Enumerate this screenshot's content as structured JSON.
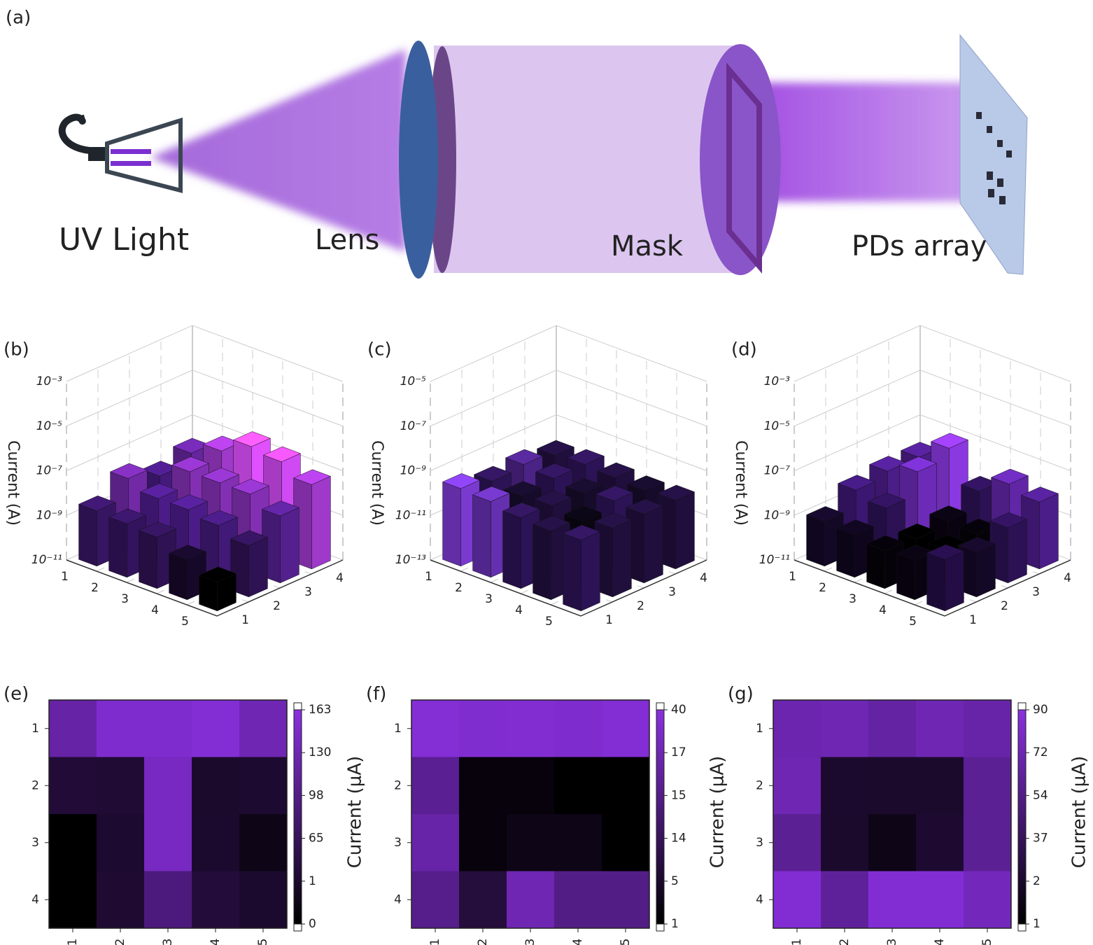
{
  "panel_a": {
    "label": "(a)",
    "components": [
      "UV Light",
      "Lens",
      "Mask",
      "PDs array"
    ]
  },
  "chart_data": [
    {
      "type": "bar3d",
      "label": "(b)",
      "zlabel": "Current (A)",
      "log_scale": true,
      "x_categories": [
        "1",
        "2",
        "3",
        "4",
        "5"
      ],
      "y_categories": [
        "1",
        "2",
        "3",
        "4"
      ],
      "values": [
        [
          3e-09,
          2e-08,
          6e-09,
          1.5e-08
        ],
        [
          2.5e-09,
          8e-09,
          3e-08,
          6e-08
        ],
        [
          2e-09,
          8e-09,
          3e-08,
          3e-07
        ],
        [
          6e-10,
          5e-09,
          3e-08,
          2e-07
        ],
        [
          2e-10,
          2e-09,
          1e-08,
          6e-08
        ]
      ],
      "zlim": [
        1e-11,
        0.001
      ],
      "zticks": [
        {
          "value": 1e-11,
          "label": "10⁻¹¹"
        },
        {
          "value": 1e-09,
          "label": "10⁻⁹"
        },
        {
          "value": 1e-07,
          "label": "10⁻⁷"
        },
        {
          "value": 1e-05,
          "label": "10⁻⁵"
        },
        {
          "value": 0.001,
          "label": "10⁻³"
        }
      ],
      "colors": [
        "#000000",
        "#4a1c86",
        "#e050ff"
      ]
    },
    {
      "type": "bar3d",
      "label": "(c)",
      "zlabel": "Current (A)",
      "log_scale": true,
      "x_categories": [
        "1",
        "2",
        "3",
        "4",
        "5"
      ],
      "y_categories": [
        "1",
        "2",
        "3",
        "4"
      ],
      "values": [
        [
          3e-10,
          1.5e-10,
          2e-10,
          1.2e-10
        ],
        [
          2.5e-10,
          1e-10,
          1.5e-10,
          1.5e-10
        ],
        [
          1.5e-10,
          1.2e-10,
          1e-10,
          1.2e-10
        ],
        [
          1.2e-10,
          8e-11,
          1.5e-10,
          1e-10
        ],
        [
          1.5e-10,
          1.2e-10,
          1.2e-10,
          1.2e-10
        ]
      ],
      "zlim": [
        1e-13,
        1e-05
      ],
      "zticks": [
        {
          "value": 1e-13,
          "label": "10⁻¹³"
        },
        {
          "value": 1e-11,
          "label": "10⁻¹¹"
        },
        {
          "value": 1e-09,
          "label": "10⁻⁹"
        },
        {
          "value": 1e-07,
          "label": "10⁻⁷"
        },
        {
          "value": 1e-05,
          "label": "10⁻⁵"
        }
      ],
      "colors": [
        "#0a0612",
        "#2e1458",
        "#7a3ad0"
      ]
    },
    {
      "type": "bar3d",
      "label": "(d)",
      "zlabel": "Current (A)",
      "log_scale": true,
      "x_categories": [
        "1",
        "2",
        "3",
        "4",
        "5"
      ],
      "y_categories": [
        "1",
        "2",
        "3",
        "4"
      ],
      "values": [
        [
          1e-09,
          6e-09,
          1e-08,
          1e-08
        ],
        [
          8e-10,
          3e-09,
          3e-08,
          8e-08
        ],
        [
          5e-10,
          4e-10,
          6e-10,
          3e-09
        ],
        [
          6e-10,
          4e-10,
          5e-10,
          2e-08
        ],
        [
          2e-09,
          1e-09,
          3e-09,
          1e-08
        ]
      ],
      "zlim": [
        1e-11,
        0.001
      ],
      "zticks": [
        {
          "value": 1e-11,
          "label": "10⁻¹¹"
        },
        {
          "value": 1e-09,
          "label": "10⁻⁹"
        },
        {
          "value": 1e-07,
          "label": "10⁻⁷"
        },
        {
          "value": 1e-05,
          "label": "10⁻⁵"
        },
        {
          "value": 0.001,
          "label": "10⁻³"
        }
      ],
      "colors": [
        "#000000",
        "#3a1670",
        "#8a38e0"
      ]
    },
    {
      "type": "heatmap",
      "label": "(e)",
      "colorbar_label": "Current (μA)",
      "x_categories": [
        "1",
        "2",
        "3",
        "4",
        "5"
      ],
      "y_categories": [
        "1",
        "2",
        "3",
        "4"
      ],
      "values": [
        [
          120,
          150,
          150,
          155,
          130
        ],
        [
          15,
          12,
          140,
          1,
          5
        ],
        [
          0,
          5,
          140,
          3,
          0.5
        ],
        [
          0,
          8,
          90,
          20,
          2
        ]
      ],
      "colorbar_ticks": [
        0,
        1,
        65,
        98,
        130,
        163
      ],
      "colors": [
        "#000000",
        "#8a30e0"
      ]
    },
    {
      "type": "heatmap",
      "label": "(f)",
      "colorbar_label": "Current (μA)",
      "x_categories": [
        "1",
        "2",
        "3",
        "4",
        "5"
      ],
      "y_categories": [
        "1",
        "2",
        "3",
        "4"
      ],
      "values": [
        [
          35,
          32,
          33,
          30,
          34
        ],
        [
          15.5,
          2,
          2,
          1,
          1
        ],
        [
          16.5,
          2,
          3,
          3,
          1
        ],
        [
          15.2,
          8,
          17,
          15,
          15
        ]
      ],
      "colorbar_ticks": [
        1,
        5,
        14,
        15,
        17,
        40
      ],
      "colors": [
        "#000000",
        "#8a30e0"
      ]
    },
    {
      "type": "heatmap",
      "label": "(g)",
      "colorbar_label": "Current (μA)",
      "x_categories": [
        "1",
        "2",
        "3",
        "4",
        "5"
      ],
      "y_categories": [
        "1",
        "2",
        "3",
        "4"
      ],
      "values": [
        [
          70,
          72,
          65,
          72,
          68
        ],
        [
          72,
          3,
          2,
          2,
          60
        ],
        [
          60,
          2,
          1.5,
          5,
          60
        ],
        [
          85,
          62,
          85,
          85,
          75
        ]
      ],
      "colorbar_ticks": [
        1,
        2,
        37,
        54,
        72,
        90
      ],
      "colors": [
        "#000000",
        "#8a30e0"
      ]
    }
  ]
}
